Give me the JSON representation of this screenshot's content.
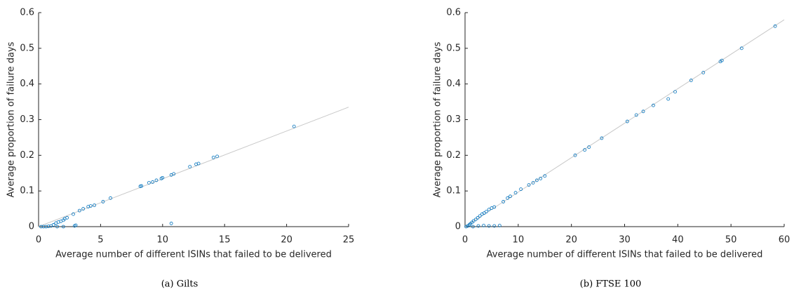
{
  "chart_data": [
    {
      "type": "scatter",
      "caption": "(a) Gilts",
      "xlabel": "Average number of different ISINs that failed to be delivered",
      "ylabel": "Average proportion of failure days",
      "xlim": [
        0,
        25
      ],
      "ylim": [
        0,
        0.6
      ],
      "xticks": [
        0,
        5,
        10,
        15,
        20,
        25
      ],
      "yticks": [
        0,
        0.1,
        0.2,
        0.3,
        0.4,
        0.5,
        0.6
      ],
      "color": "#0072bd",
      "fit_color": "#c8c8c8",
      "x": [
        0.2,
        0.4,
        0.6,
        0.8,
        1.0,
        1.2,
        1.4,
        1.5,
        1.6,
        1.8,
        2.0,
        2.1,
        2.3,
        2.0,
        2.8,
        2.9,
        3.0,
        3.3,
        3.6,
        4.0,
        4.2,
        4.5,
        5.2,
        5.8,
        8.2,
        8.3,
        8.9,
        9.2,
        9.5,
        9.9,
        10.0,
        10.7,
        10.9,
        10.7,
        12.2,
        12.7,
        12.9,
        14.1,
        14.4,
        20.6
      ],
      "y": [
        0,
        0,
        0,
        0.001,
        0.002,
        0.005,
        0.01,
        0,
        0.013,
        0.015,
        0.018,
        0.022,
        0.025,
        0,
        0.035,
        0.002,
        0.004,
        0.045,
        0.05,
        0.056,
        0.058,
        0.06,
        0.07,
        0.08,
        0.113,
        0.114,
        0.123,
        0.125,
        0.13,
        0.135,
        0.137,
        0.145,
        0.148,
        0.009,
        0.168,
        0.175,
        0.177,
        0.194,
        0.197,
        0.281
      ],
      "fit": {
        "x": [
          0,
          25
        ],
        "y": [
          0,
          0.335
        ]
      }
    },
    {
      "type": "scatter",
      "caption": "(b) FTSE 100",
      "xlabel": "Average number of different ISINs that failed to be delivered",
      "ylabel": "Average proportion of failure days",
      "xlim": [
        0,
        60
      ],
      "ylim": [
        0,
        0.6
      ],
      "xticks": [
        0,
        10,
        20,
        30,
        40,
        50,
        60
      ],
      "yticks": [
        0,
        0.1,
        0.2,
        0.3,
        0.4,
        0.5,
        0.6
      ],
      "color": "#0072bd",
      "fit_color": "#c8c8c8",
      "x": [
        0.2,
        0.5,
        0.8,
        1.0,
        1.3,
        1.6,
        2.0,
        2.4,
        2.8,
        3.2,
        3.6,
        4.0,
        4.5,
        5.0,
        5.5,
        1.5,
        2.5,
        3.5,
        4.5,
        5.5,
        6.5,
        7.2,
        8.0,
        8.5,
        9.5,
        10.5,
        12.0,
        12.8,
        13.5,
        14.2,
        15.0,
        20.7,
        22.5,
        23.3,
        25.7,
        30.5,
        32.2,
        33.5,
        35.4,
        38.2,
        39.5,
        42.5,
        44.8,
        48.0,
        48.3,
        52.0,
        58.3
      ],
      "y": [
        0,
        0.002,
        0.005,
        0.008,
        0.012,
        0.016,
        0.02,
        0.025,
        0.03,
        0.035,
        0.038,
        0.042,
        0.048,
        0.052,
        0.055,
        0,
        0.002,
        0.003,
        0.002,
        0.002,
        0.003,
        0.07,
        0.08,
        0.085,
        0.095,
        0.105,
        0.117,
        0.123,
        0.13,
        0.135,
        0.142,
        0.2,
        0.215,
        0.223,
        0.248,
        0.295,
        0.313,
        0.323,
        0.34,
        0.358,
        0.378,
        0.41,
        0.432,
        0.463,
        0.466,
        0.5,
        0.562
      ],
      "fit": {
        "x": [
          0,
          60
        ],
        "y": [
          0,
          0.58
        ]
      }
    }
  ]
}
